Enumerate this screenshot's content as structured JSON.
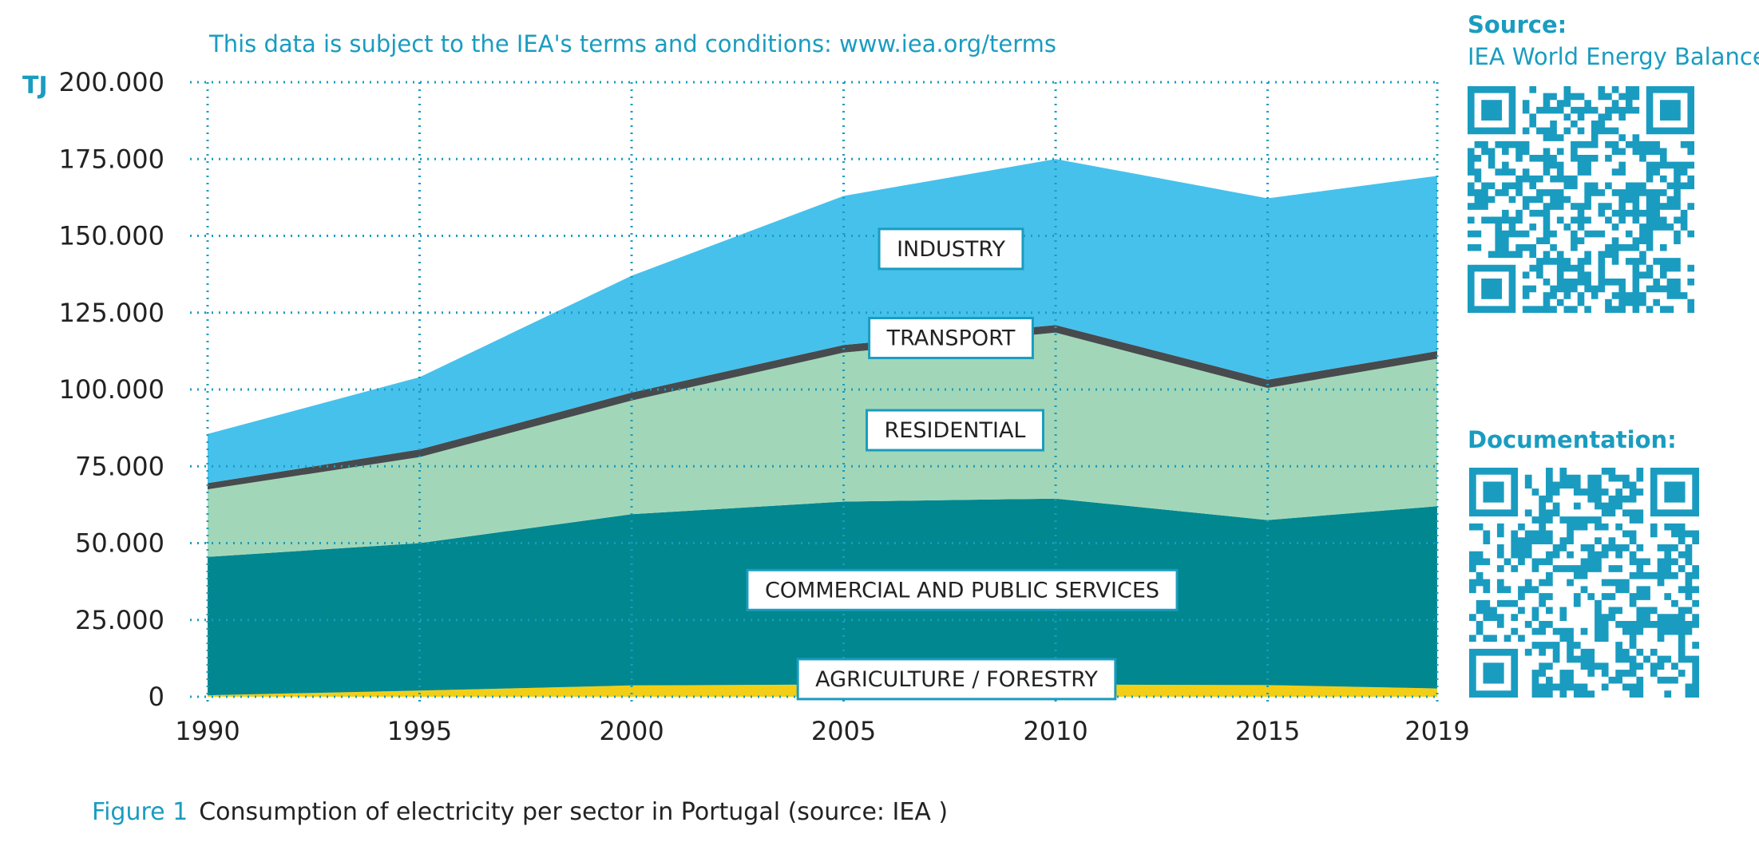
{
  "notice": "This data is subject to the IEA's terms and conditions: www.iea.org/terms",
  "unit_label": "TJ",
  "sidebar": {
    "source_heading": "Source:",
    "source_text": "IEA World Energy Balances",
    "documentation_heading": "Documentation:",
    "qr1_icon": "qr-code-icon",
    "qr2_icon": "qr-code-icon"
  },
  "caption": {
    "figure_label": "Figure 1",
    "text": "Consumption of electricity per sector in Portugal (source: IEA )"
  },
  "colors": {
    "accent": "#1a9cc0",
    "agriculture": "#f2cf16",
    "commercial": "#00878f",
    "residential": "#a1d7b8",
    "transport": "#474b4e",
    "industry": "#46c1ec"
  },
  "chart_data": {
    "type": "area",
    "stacked": true,
    "x": [
      1990,
      1995,
      2000,
      2005,
      2010,
      2015,
      2019
    ],
    "xticks": [
      "1990",
      "1995",
      "2000",
      "2005",
      "2010",
      "2015",
      "2019"
    ],
    "ylim": [
      0,
      200000
    ],
    "yticks": [
      {
        "value": 0,
        "label": "0"
      },
      {
        "value": 25000,
        "label": "25.000"
      },
      {
        "value": 50000,
        "label": "50.000"
      },
      {
        "value": 75000,
        "label": "75.000"
      },
      {
        "value": 100000,
        "label": "100.000"
      },
      {
        "value": 125000,
        "label": "125.000"
      },
      {
        "value": 150000,
        "label": "150.000"
      },
      {
        "value": 175000,
        "label": "175.000"
      },
      {
        "value": 200000,
        "label": "200.000"
      }
    ],
    "grid": true,
    "series": [
      {
        "name": "AGRICULTURE / FORESTRY",
        "values": [
          500,
          2000,
          3700,
          4000,
          4000,
          3800,
          2700
        ]
      },
      {
        "name": "COMMERCIAL AND PUBLIC SERVICES",
        "values": [
          45000,
          48000,
          55700,
          59500,
          60500,
          53700,
          59300
        ]
      },
      {
        "name": "RESIDENTIAL",
        "values": [
          22000,
          28000,
          37000,
          48500,
          54000,
          43000,
          48000
        ]
      },
      {
        "name": "TRANSPORT",
        "values": [
          2000,
          2500,
          2600,
          2500,
          2500,
          2700,
          2500
        ]
      },
      {
        "name": "INDUSTRY",
        "values": [
          16000,
          23500,
          38000,
          48500,
          54000,
          59000,
          57000
        ]
      }
    ]
  }
}
